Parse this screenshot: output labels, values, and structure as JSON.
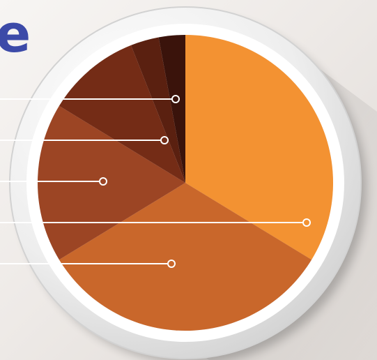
{
  "title_fragment": "e",
  "colors": {
    "title": "#3c4aa8",
    "callout_line": "#ffffff"
  },
  "chart_data": {
    "type": "pie",
    "start_angle_deg": 0,
    "direction": "clockwise",
    "slices": [
      {
        "value": 33.7,
        "color": "#f39232"
      },
      {
        "value": 32.6,
        "color": "#c9672b"
      },
      {
        "value": 17.4,
        "color": "#9c4524"
      },
      {
        "value": 10.3,
        "color": "#742c16"
      },
      {
        "value": 3.1,
        "color": "#5a2010"
      },
      {
        "value": 2.9,
        "color": "#3a130b"
      }
    ],
    "callouts": [
      {
        "slice_index": 3
      },
      {
        "slice_index": 3
      },
      {
        "slice_index": 2
      },
      {
        "slice_index": 0
      },
      {
        "slice_index": 1
      }
    ]
  }
}
